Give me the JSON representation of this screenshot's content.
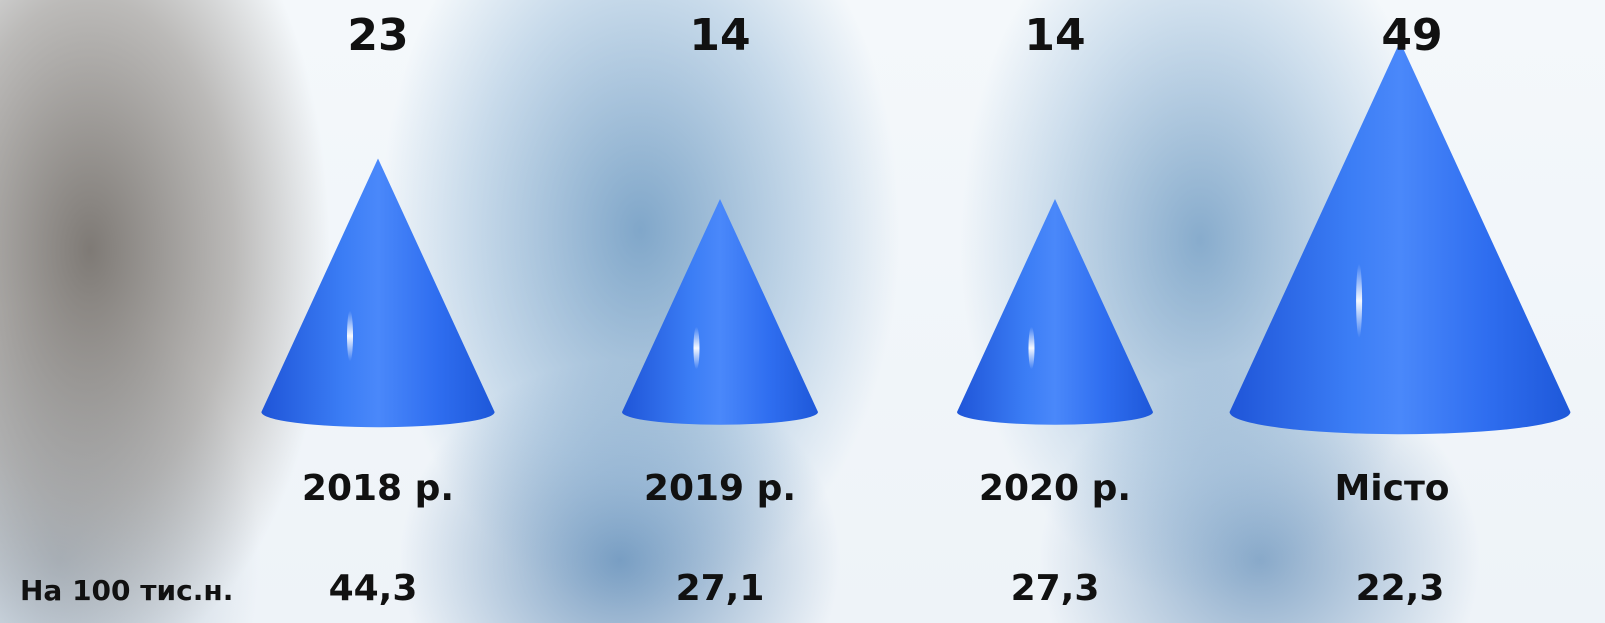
{
  "chart_data": {
    "type": "cone",
    "categories": [
      "2018 р.",
      "2019 р.",
      "2020 р.",
      "Місто"
    ],
    "values": [
      23,
      14,
      14,
      49
    ],
    "color": "#2f6ef0",
    "rates": {
      "name": "На 100 тис.н.",
      "values": [
        44.3,
        27.1,
        27.3,
        22.3
      ],
      "value_labels": [
        "44,3",
        "27,1",
        "27,3",
        "22,3"
      ]
    }
  }
}
